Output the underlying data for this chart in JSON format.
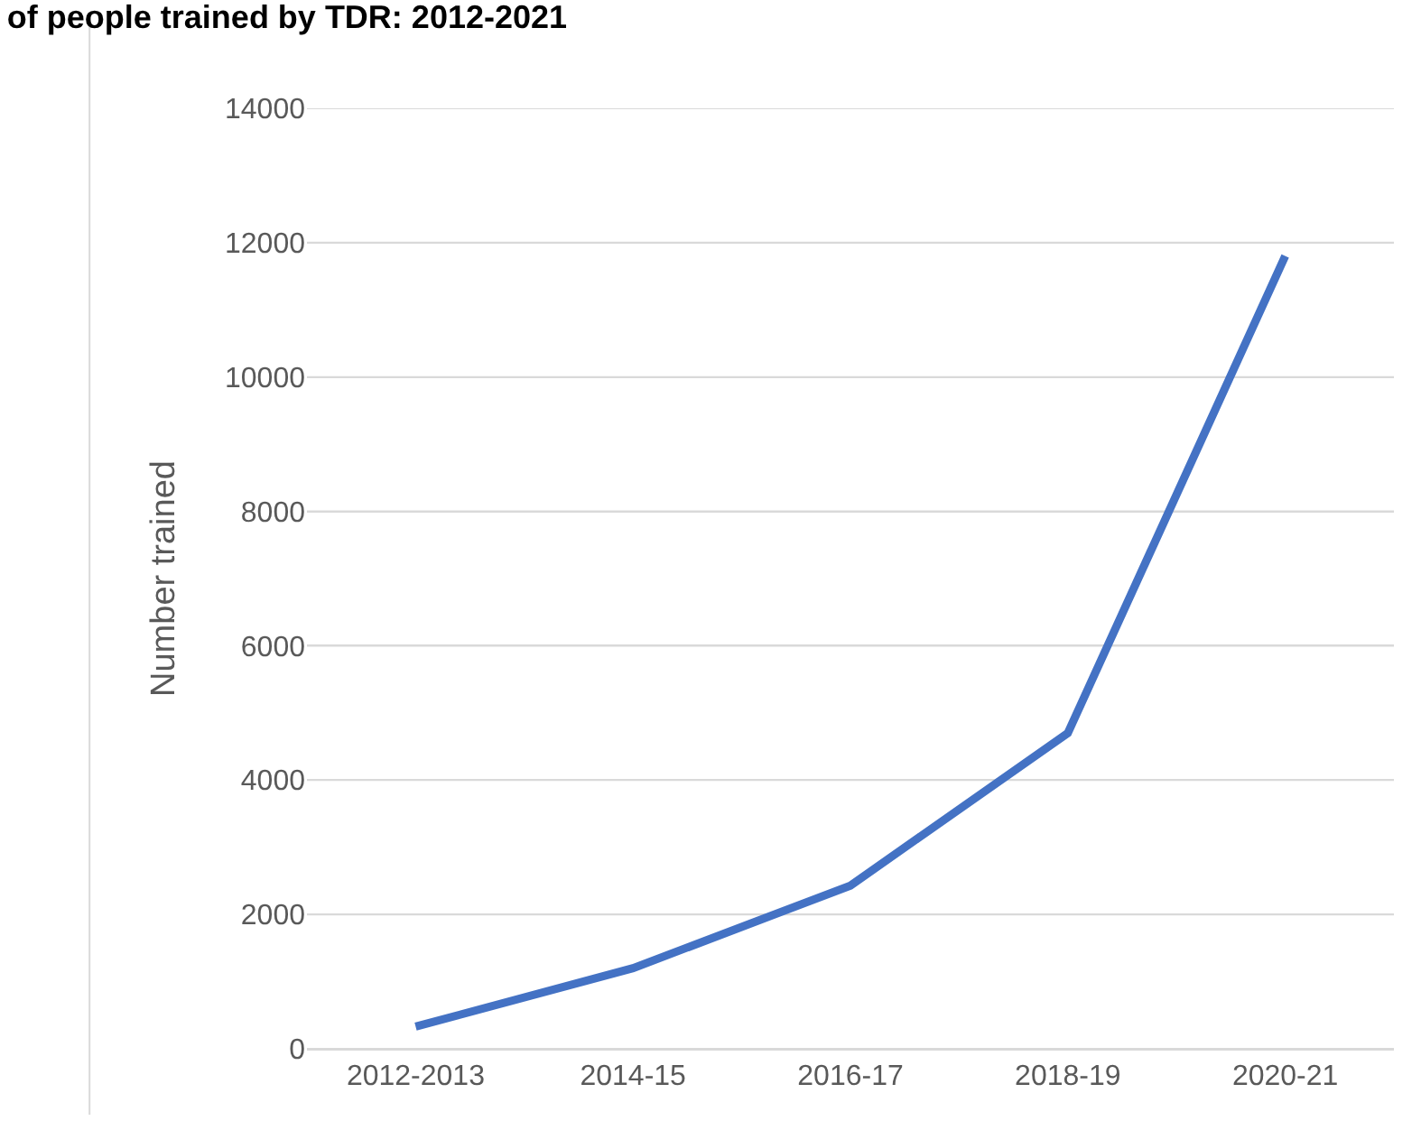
{
  "chart_data": {
    "type": "line",
    "title": "of people trained by TDR: 2012-2021",
    "ylabel": "Number trained",
    "categories": [
      "2012-2013",
      "2014-15",
      "2016-17",
      "2018-19",
      "2020-21"
    ],
    "series": [
      {
        "color": "#4472c4",
        "values": [
          330,
          1200,
          2430,
          4700,
          11800
        ]
      }
    ],
    "ylim": [
      0,
      14000
    ],
    "yticks": [
      0,
      2000,
      4000,
      6000,
      8000,
      10000,
      12000,
      14000
    ],
    "grid": "y",
    "marker": "none",
    "line_style": "solid"
  }
}
